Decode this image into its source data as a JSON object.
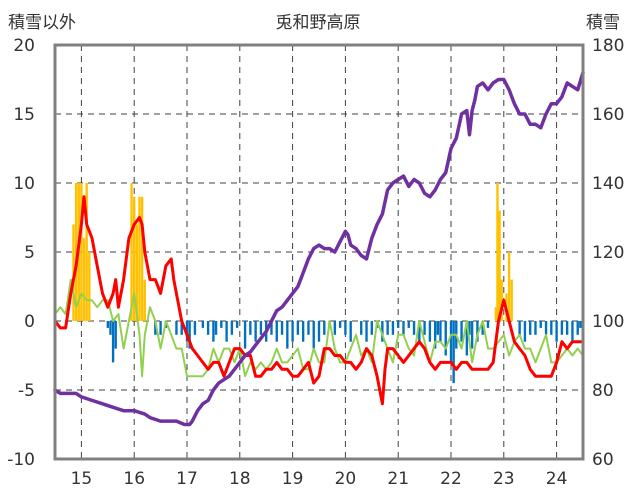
{
  "chart_data": {
    "type": "line",
    "title": "兎和野高原",
    "ylabel_left": "積雪以外",
    "ylabel_right": "積雪",
    "xlim": [
      14.5,
      24.5
    ],
    "ylim_left": [
      -10,
      20
    ],
    "ylim_right": [
      60,
      180
    ],
    "x_ticks": [
      "15",
      "16",
      "17",
      "18",
      "19",
      "20",
      "21",
      "22",
      "23",
      "24"
    ],
    "y_ticks_left": [
      "20",
      "15",
      "10",
      "5",
      "0",
      "-5",
      "-10"
    ],
    "y_ticks_right": [
      "180",
      "160",
      "140",
      "120",
      "100",
      "80",
      "60"
    ],
    "grid": true,
    "legend": "none",
    "colors": {
      "snow_depth": "#7030a0",
      "temperature": "#ff0000",
      "other": "#92d050",
      "precip_positive": "#ffc000",
      "precip_negative": "#0070c0",
      "axis": "#808080",
      "grid": "#404040"
    },
    "bars": [
      {
        "x": 14.85,
        "v": 7
      },
      {
        "x": 14.9,
        "v": 10
      },
      {
        "x": 14.95,
        "v": 10
      },
      {
        "x": 15.0,
        "v": 10
      },
      {
        "x": 15.05,
        "v": 6
      },
      {
        "x": 15.1,
        "v": 10
      },
      {
        "x": 15.15,
        "v": 5
      },
      {
        "x": 15.5,
        "v": -0.5
      },
      {
        "x": 15.55,
        "v": -1
      },
      {
        "x": 15.6,
        "v": -3
      },
      {
        "x": 15.65,
        "v": -2
      },
      {
        "x": 15.95,
        "v": 10
      },
      {
        "x": 16.0,
        "v": 9
      },
      {
        "x": 16.05,
        "v": 7
      },
      {
        "x": 16.1,
        "v": 9
      },
      {
        "x": 16.15,
        "v": 9
      },
      {
        "x": 16.2,
        "v": 3
      },
      {
        "x": 16.4,
        "v": -1
      },
      {
        "x": 16.5,
        "v": -1
      },
      {
        "x": 16.6,
        "v": -0.5
      },
      {
        "x": 16.8,
        "v": -1
      },
      {
        "x": 16.9,
        "v": -1
      },
      {
        "x": 17.0,
        "v": -1.5
      },
      {
        "x": 17.05,
        "v": -2
      },
      {
        "x": 17.15,
        "v": -1
      },
      {
        "x": 17.3,
        "v": -0.5
      },
      {
        "x": 17.4,
        "v": -1
      },
      {
        "x": 17.5,
        "v": -1.5
      },
      {
        "x": 17.55,
        "v": -1
      },
      {
        "x": 17.65,
        "v": -0.5
      },
      {
        "x": 17.75,
        "v": -1.5
      },
      {
        "x": 17.85,
        "v": -1
      },
      {
        "x": 17.95,
        "v": -0.5
      },
      {
        "x": 18.1,
        "v": -2
      },
      {
        "x": 18.2,
        "v": -1
      },
      {
        "x": 18.3,
        "v": -1.5
      },
      {
        "x": 18.4,
        "v": -1
      },
      {
        "x": 18.5,
        "v": -1.5
      },
      {
        "x": 18.6,
        "v": -1
      },
      {
        "x": 18.7,
        "v": -1.5
      },
      {
        "x": 18.8,
        "v": -1
      },
      {
        "x": 18.9,
        "v": -2
      },
      {
        "x": 19.0,
        "v": -1.5
      },
      {
        "x": 19.1,
        "v": -1
      },
      {
        "x": 19.2,
        "v": -1.5
      },
      {
        "x": 19.3,
        "v": -1
      },
      {
        "x": 19.4,
        "v": -2
      },
      {
        "x": 19.5,
        "v": -1.5
      },
      {
        "x": 19.6,
        "v": -1
      },
      {
        "x": 19.7,
        "v": -0.5
      },
      {
        "x": 19.8,
        "v": -1
      },
      {
        "x": 19.9,
        "v": -0.5
      },
      {
        "x": 20.0,
        "v": -1
      },
      {
        "x": 20.1,
        "v": -1.5
      },
      {
        "x": 20.3,
        "v": -1
      },
      {
        "x": 20.4,
        "v": -1.5
      },
      {
        "x": 20.5,
        "v": -1
      },
      {
        "x": 20.6,
        "v": -0.5
      },
      {
        "x": 20.7,
        "v": -1.5
      },
      {
        "x": 20.8,
        "v": -1
      },
      {
        "x": 20.9,
        "v": -1
      },
      {
        "x": 21.0,
        "v": -0.5
      },
      {
        "x": 21.1,
        "v": -1
      },
      {
        "x": 21.2,
        "v": -0.5
      },
      {
        "x": 21.3,
        "v": -1
      },
      {
        "x": 21.4,
        "v": -1.5
      },
      {
        "x": 21.5,
        "v": -1
      },
      {
        "x": 21.6,
        "v": -1.5
      },
      {
        "x": 21.7,
        "v": -2
      },
      {
        "x": 21.75,
        "v": -1
      },
      {
        "x": 21.8,
        "v": -1.5
      },
      {
        "x": 21.9,
        "v": -2.5
      },
      {
        "x": 22.0,
        "v": -3
      },
      {
        "x": 22.05,
        "v": -4.5
      },
      {
        "x": 22.1,
        "v": -2
      },
      {
        "x": 22.2,
        "v": -1.5
      },
      {
        "x": 22.3,
        "v": -2.5
      },
      {
        "x": 22.35,
        "v": -1
      },
      {
        "x": 22.4,
        "v": -2
      },
      {
        "x": 22.5,
        "v": -1.5
      },
      {
        "x": 22.6,
        "v": -1
      },
      {
        "x": 22.7,
        "v": -0.5
      },
      {
        "x": 22.85,
        "v": 1
      },
      {
        "x": 22.88,
        "v": 10
      },
      {
        "x": 22.92,
        "v": 8
      },
      {
        "x": 22.96,
        "v": 3
      },
      {
        "x": 23.05,
        "v": 2
      },
      {
        "x": 23.1,
        "v": 5
      },
      {
        "x": 23.15,
        "v": 3
      },
      {
        "x": 23.3,
        "v": -1
      },
      {
        "x": 23.4,
        "v": -1.5
      },
      {
        "x": 23.5,
        "v": -1
      },
      {
        "x": 23.6,
        "v": -1
      },
      {
        "x": 23.7,
        "v": -0.5
      },
      {
        "x": 23.8,
        "v": -1
      },
      {
        "x": 23.9,
        "v": -1
      },
      {
        "x": 24.0,
        "v": -1.5
      },
      {
        "x": 24.1,
        "v": -1
      },
      {
        "x": 24.2,
        "v": -1
      },
      {
        "x": 24.3,
        "v": -1.5
      },
      {
        "x": 24.4,
        "v": -1
      },
      {
        "x": 24.45,
        "v": -0.5
      }
    ],
    "series": [
      {
        "axis": "right",
        "color": "#7030a0",
        "width": 3.5,
        "x": [
          14.5,
          14.6,
          14.9,
          15.0,
          15.2,
          15.4,
          15.6,
          15.8,
          16.0,
          16.2,
          16.3,
          16.5,
          16.7,
          16.8,
          16.95,
          17.0,
          17.05,
          17.1,
          17.2,
          17.3,
          17.4,
          17.5,
          17.6,
          17.7,
          17.8,
          17.9,
          18.0,
          18.1,
          18.2,
          18.3,
          18.4,
          18.5,
          18.6,
          18.7,
          18.8,
          18.9,
          19.0,
          19.1,
          19.2,
          19.3,
          19.4,
          19.5,
          19.6,
          19.7,
          19.8,
          19.9,
          20.0,
          20.05,
          20.1,
          20.2,
          20.3,
          20.4,
          20.5,
          20.6,
          20.7,
          20.8,
          20.9,
          21.0,
          21.1,
          21.2,
          21.3,
          21.4,
          21.5,
          21.6,
          21.7,
          21.8,
          21.9,
          22.0,
          22.1,
          22.2,
          22.3,
          22.35,
          22.4,
          22.45,
          22.5,
          22.6,
          22.7,
          22.8,
          22.9,
          23.0,
          23.1,
          23.2,
          23.3,
          23.4,
          23.5,
          23.6,
          23.7,
          23.8,
          23.9,
          24.0,
          24.1,
          24.2,
          24.3,
          24.4,
          24.5
        ],
        "y": [
          80,
          79,
          79,
          78,
          77,
          76,
          75,
          74,
          74,
          73,
          72,
          71,
          71,
          71,
          70,
          70,
          70,
          71,
          74,
          76,
          77,
          80,
          82,
          83,
          84,
          86,
          88,
          90,
          91,
          93,
          95,
          97,
          100,
          103,
          104,
          106,
          108,
          110,
          114,
          118,
          121,
          122,
          121,
          121,
          120,
          123,
          126,
          125,
          122,
          121,
          119,
          118,
          124,
          128,
          131,
          138,
          140,
          141,
          142,
          139,
          141,
          140,
          137,
          136,
          138,
          141,
          143,
          150,
          153,
          160,
          161,
          154,
          161,
          164,
          168,
          169,
          167,
          169,
          170,
          170,
          167,
          163,
          160,
          160,
          157,
          157,
          156,
          160,
          163,
          163,
          165,
          169,
          168,
          167,
          172
        ],
        "y2": []
      },
      {
        "axis": "left",
        "color": "#ff0000",
        "width": 3,
        "x": [
          14.5,
          14.6,
          14.7,
          14.8,
          14.9,
          15.0,
          15.05,
          15.1,
          15.2,
          15.3,
          15.4,
          15.5,
          15.6,
          15.65,
          15.7,
          15.8,
          15.9,
          16.0,
          16.1,
          16.15,
          16.2,
          16.3,
          16.4,
          16.5,
          16.6,
          16.7,
          16.75,
          16.8,
          16.9,
          17.0,
          17.1,
          17.2,
          17.3,
          17.4,
          17.5,
          17.6,
          17.7,
          17.8,
          17.9,
          18.0,
          18.1,
          18.2,
          18.3,
          18.4,
          18.5,
          18.6,
          18.7,
          18.8,
          18.9,
          19.0,
          19.1,
          19.2,
          19.3,
          19.4,
          19.5,
          19.6,
          19.7,
          19.8,
          19.9,
          20.0,
          20.1,
          20.2,
          20.3,
          20.4,
          20.5,
          20.6,
          20.7,
          20.75,
          20.8,
          20.9,
          21.0,
          21.1,
          21.2,
          21.3,
          21.4,
          21.5,
          21.6,
          21.7,
          21.8,
          21.9,
          22.0,
          22.1,
          22.2,
          22.3,
          22.4,
          22.5,
          22.6,
          22.7,
          22.8,
          22.9,
          23.0,
          23.1,
          23.2,
          23.3,
          23.4,
          23.5,
          23.6,
          23.7,
          23.8,
          23.9,
          24.0,
          24.1,
          24.2,
          24.3,
          24.4,
          24.5
        ],
        "y": [
          0,
          -0.5,
          -0.5,
          2,
          4,
          7,
          9,
          7,
          6,
          4,
          2,
          1,
          2,
          3,
          1,
          3,
          6,
          7,
          7.5,
          7,
          5,
          3,
          3,
          2,
          4,
          4.5,
          3,
          2,
          0,
          -1,
          -2,
          -2.5,
          -3,
          -3.5,
          -3,
          -3,
          -4,
          -3,
          -2,
          -2,
          -2.5,
          -2.5,
          -4,
          -4,
          -3.5,
          -3.5,
          -3,
          -3.5,
          -3.5,
          -4,
          -4,
          -3.5,
          -3,
          -4.5,
          -4,
          -2,
          -2,
          -2.5,
          -2.5,
          -3,
          -3,
          -3.5,
          -3,
          -2,
          -2.5,
          -4,
          -6,
          -3.5,
          -2,
          -2,
          -2.5,
          -3,
          -2.5,
          -2,
          -1.5,
          -2,
          -3,
          -3.5,
          -3,
          -3,
          -3,
          -3.5,
          -3,
          -3,
          -3.5,
          -3.5,
          -3.5,
          -3.5,
          -3,
          0,
          1.5,
          0,
          -1.5,
          -2,
          -2.5,
          -3.5,
          -4,
          -4,
          -4,
          -4,
          -3,
          -1.5,
          -2,
          -1.5,
          -1.5,
          -1.5
        ]
      },
      {
        "axis": "left",
        "color": "#92d050",
        "width": 2,
        "x": [
          14.5,
          14.6,
          14.7,
          14.8,
          14.9,
          15.0,
          15.1,
          15.2,
          15.3,
          15.4,
          15.5,
          15.6,
          15.7,
          15.8,
          15.9,
          16.0,
          16.1,
          16.15,
          16.2,
          16.3,
          16.4,
          16.5,
          16.6,
          16.7,
          16.8,
          16.9,
          17.0,
          17.1,
          17.2,
          17.3,
          17.4,
          17.5,
          17.6,
          17.7,
          17.8,
          17.9,
          18.0,
          18.1,
          18.2,
          18.3,
          18.4,
          18.5,
          18.6,
          18.7,
          18.8,
          18.9,
          19.0,
          19.1,
          19.2,
          19.3,
          19.4,
          19.5,
          19.6,
          19.7,
          19.8,
          19.9,
          20.0,
          20.1,
          20.2,
          20.3,
          20.4,
          20.5,
          20.6,
          20.7,
          20.8,
          20.9,
          21.0,
          21.1,
          21.2,
          21.3,
          21.4,
          21.5,
          21.6,
          21.7,
          21.8,
          21.9,
          22.0,
          22.1,
          22.2,
          22.3,
          22.4,
          22.5,
          22.6,
          22.7,
          22.8,
          22.9,
          23.0,
          23.1,
          23.2,
          23.3,
          23.4,
          23.5,
          23.6,
          23.7,
          23.8,
          23.9,
          24.0,
          24.1,
          24.2,
          24.3,
          24.4,
          24.5
        ],
        "y": [
          0.5,
          1,
          0.5,
          3,
          1,
          2,
          1.5,
          1.5,
          1,
          1.5,
          1.5,
          0,
          0.5,
          -2,
          0,
          2,
          -1,
          -4,
          -1,
          1,
          0,
          -2,
          0,
          -1,
          -2,
          -2,
          -4,
          -4,
          -4,
          -4,
          -3.5,
          -2,
          -3,
          -2,
          -2,
          -3,
          -2,
          -4,
          -3,
          -3.5,
          -3,
          -3.5,
          -3,
          -2,
          -3,
          -3,
          -2.5,
          -2,
          -3.5,
          -3.5,
          -2,
          -3,
          -3,
          0,
          -2,
          -3,
          -3,
          -2,
          -1,
          -2.5,
          -2,
          -3,
          0,
          -1,
          -2,
          -3,
          -1,
          -1,
          -2,
          -2.5,
          0,
          -1.5,
          -3,
          -1.5,
          -1.5,
          -2,
          -1,
          -1,
          -2,
          0,
          -3,
          -1,
          0,
          -2,
          -2,
          -1.5,
          -1,
          -2.5,
          -1.5,
          -1,
          -2,
          -2,
          -3,
          -2,
          -1,
          -3,
          -3,
          -2.5,
          -2,
          -2.5,
          -2,
          -2.5
        ]
      }
    ]
  }
}
